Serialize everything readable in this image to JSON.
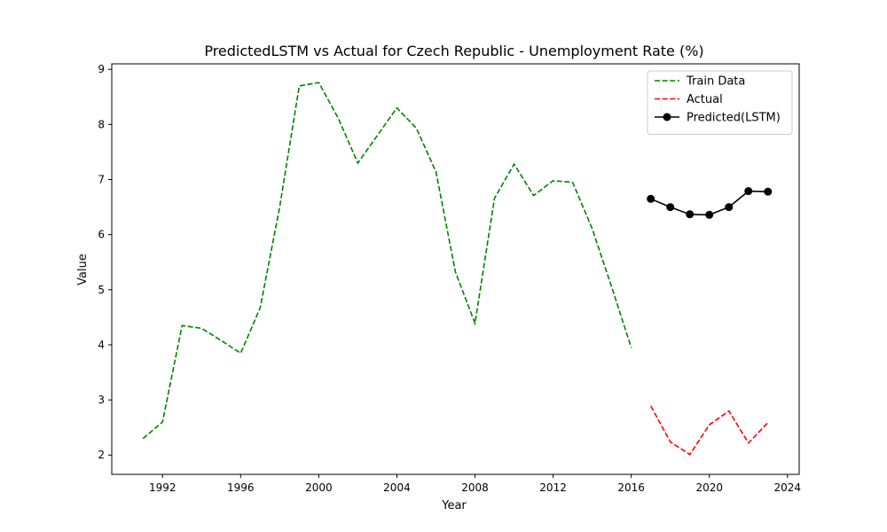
{
  "chart_data": {
    "type": "line",
    "title": "PredictedLSTM vs Actual for Czech Republic - Unemployment Rate (%)",
    "xlabel": "Year",
    "ylabel": "Value",
    "xlim": [
      1989.4,
      2024.6
    ],
    "ylim": [
      1.65,
      9.1
    ],
    "xticks": [
      1992,
      1996,
      2000,
      2004,
      2008,
      2012,
      2016,
      2020,
      2024
    ],
    "yticks": [
      2,
      3,
      4,
      5,
      6,
      7,
      8,
      9
    ],
    "grid": false,
    "legend_position": "top-right",
    "series": [
      {
        "name": "Train Data",
        "color": "#008000",
        "style": "dashed",
        "marker": false,
        "x": [
          1991,
          1992,
          1993,
          1994,
          1995,
          1996,
          1997,
          1998,
          1999,
          2000,
          2001,
          2002,
          2003,
          2004,
          2005,
          2006,
          2007,
          2008,
          2009,
          2010,
          2011,
          2012,
          2013,
          2014,
          2015,
          2016
        ],
        "y": [
          2.3,
          2.6,
          4.35,
          4.3,
          4.08,
          3.85,
          4.67,
          6.5,
          8.7,
          8.76,
          8.11,
          7.3,
          7.8,
          8.3,
          7.93,
          7.14,
          5.32,
          4.39,
          6.66,
          7.28,
          6.71,
          6.98,
          6.95,
          6.11,
          5.05,
          3.95
        ]
      },
      {
        "name": "Actual",
        "color": "#ff0000",
        "style": "dashed",
        "marker": false,
        "x": [
          2017,
          2018,
          2019,
          2020,
          2021,
          2022,
          2023
        ],
        "y": [
          2.89,
          2.24,
          2.01,
          2.55,
          2.8,
          2.22,
          2.59
        ]
      },
      {
        "name": "Predicted(LSTM)",
        "color": "#000000",
        "style": "solid",
        "marker": true,
        "x": [
          2017,
          2018,
          2019,
          2020,
          2021,
          2022,
          2023
        ],
        "y": [
          6.65,
          6.5,
          6.37,
          6.36,
          6.5,
          6.79,
          6.78
        ]
      }
    ]
  }
}
